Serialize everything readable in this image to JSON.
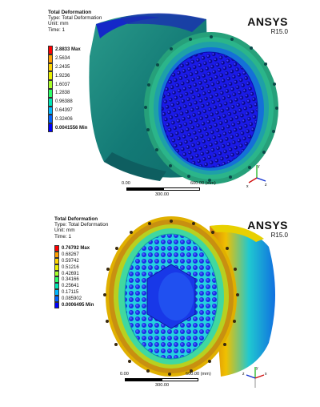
{
  "panels": [
    {
      "info": {
        "title": "Total Deformation",
        "type": "Type: Total Deformation",
        "unit": "Unit: mm",
        "time": "Time: 1"
      },
      "brand": {
        "name": "ANSYS",
        "version": "R15.0"
      },
      "legend": [
        {
          "label": "2.8833 Max",
          "color": "#ff0000",
          "bold": true
        },
        {
          "label": "2.5634",
          "color": "#ff9f00",
          "bold": false
        },
        {
          "label": "2.2435",
          "color": "#ffd400",
          "bold": false
        },
        {
          "label": "1.9236",
          "color": "#e8f000",
          "bold": false
        },
        {
          "label": "1.6037",
          "color": "#a8ff2a",
          "bold": false
        },
        {
          "label": "1.2838",
          "color": "#2dff6a",
          "bold": false
        },
        {
          "label": "0.96388",
          "color": "#00e6b6",
          "bold": false
        },
        {
          "label": "0.64397",
          "color": "#00b8ff",
          "bold": false
        },
        {
          "label": "0.32406",
          "color": "#0060ff",
          "bold": false
        },
        {
          "label": "0.0041556 Min",
          "color": "#0000ff",
          "bold": true
        }
      ],
      "scale": {
        "start": "0.00",
        "end": "600.00 (mm)",
        "mid": "300.00"
      },
      "triad": {
        "x": "x",
        "y": "y",
        "z": "z"
      }
    },
    {
      "info": {
        "title": "Total Deformation",
        "type": "Type: Total Deformation",
        "unit": "Unit: mm",
        "time": "Time: 1"
      },
      "brand": {
        "name": "ANSYS",
        "version": "R15.0"
      },
      "legend": [
        {
          "label": "0.76792 Max",
          "color": "#ff0000",
          "bold": true
        },
        {
          "label": "0.68267",
          "color": "#ff9f00",
          "bold": false
        },
        {
          "label": "0.59742",
          "color": "#ffd400",
          "bold": false
        },
        {
          "label": "0.51216",
          "color": "#e8f000",
          "bold": false
        },
        {
          "label": "0.42691",
          "color": "#a8ff2a",
          "bold": false
        },
        {
          "label": "0.34166",
          "color": "#2dff6a",
          "bold": false
        },
        {
          "label": "0.25641",
          "color": "#00e6b6",
          "bold": false
        },
        {
          "label": "0.17115",
          "color": "#00b8ff",
          "bold": false
        },
        {
          "label": "0.085902",
          "color": "#0060ff",
          "bold": false
        },
        {
          "label": "0.0006495 Min",
          "color": "#0000ff",
          "bold": true
        }
      ],
      "scale": {
        "start": "0.00",
        "end": "600.00 (mm)",
        "mid": "300.00"
      },
      "triad": {
        "x": "x",
        "y": "y",
        "z": "z"
      }
    }
  ]
}
